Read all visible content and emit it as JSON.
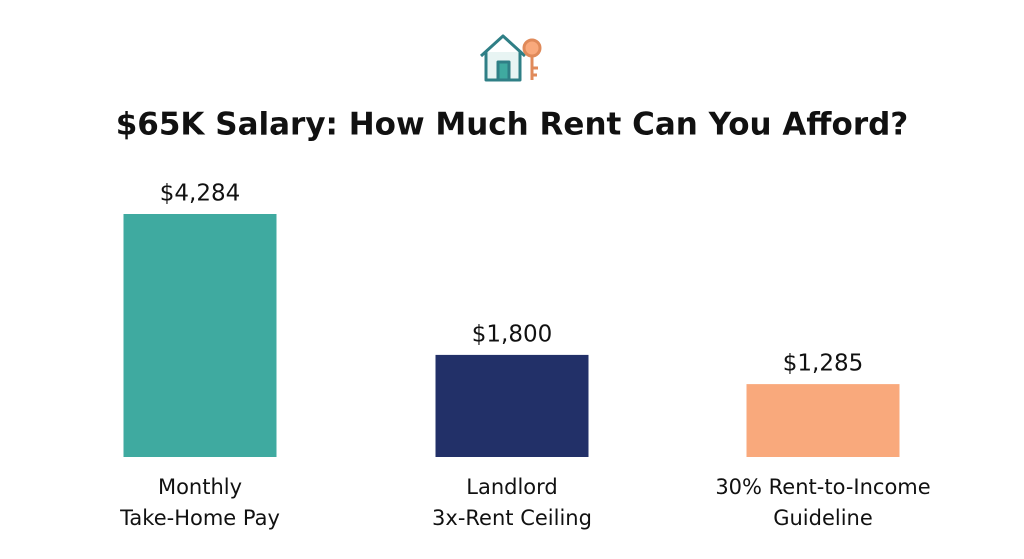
{
  "chart_data": {
    "type": "bar",
    "title": "$65K Salary: How Much Rent Can You Afford?",
    "categories": [
      [
        "Monthly",
        "Take-Home Pay"
      ],
      [
        "Landlord",
        "3x-Rent Ceiling"
      ],
      [
        "30% Rent-to-Income",
        "Guideline"
      ]
    ],
    "values": [
      4284,
      1800,
      1285
    ],
    "value_labels": [
      "$4,284",
      "$1,800",
      "$1,285"
    ],
    "colors": [
      "#3faaa0",
      "#223068",
      "#f9a97c"
    ]
  }
}
